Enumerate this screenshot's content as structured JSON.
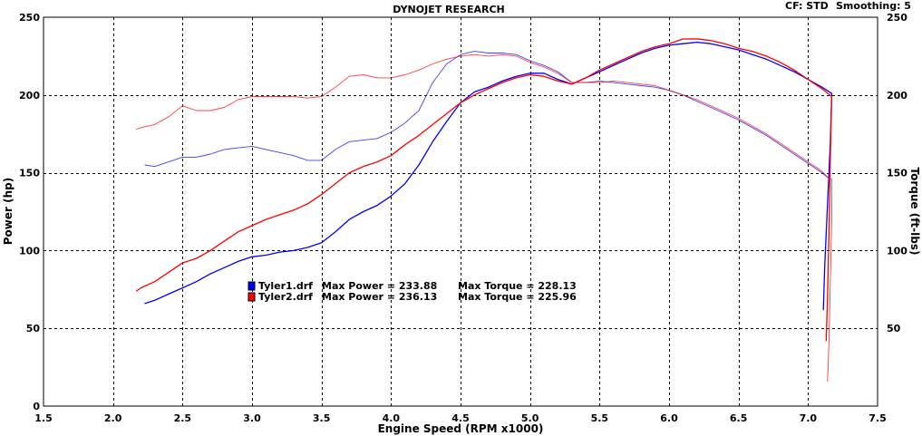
{
  "header": {
    "title": "DYNOJET RESEARCH",
    "cf_label": "CF: STD",
    "smoothing_label": "Smoothing: 5"
  },
  "chart_data": {
    "type": "line",
    "title": "DYNOJET RESEARCH",
    "xlabel": "Engine Speed (RPM x1000)",
    "ylabel_left": "Power (hp)",
    "ylabel_right": "Torque (ft-lbs)",
    "xlim": [
      1.5,
      7.5
    ],
    "ylim": [
      0,
      250
    ],
    "x_ticks": [
      "1.5",
      "2.0",
      "2.5",
      "3.0",
      "3.5",
      "4.0",
      "4.5",
      "5.0",
      "5.5",
      "6.0",
      "6.5",
      "7.0",
      "7.5"
    ],
    "y_ticks_left": [
      "0",
      "50",
      "100",
      "150",
      "200",
      "250"
    ],
    "y_ticks_right": [
      "50",
      "100",
      "150",
      "200",
      "250"
    ],
    "grid": true,
    "legend": [
      {
        "file": "Tyler1.drf",
        "power_label": "Max Power = 233.88",
        "torque_label": "Max Torque = 228.13",
        "color": "#0000ff"
      },
      {
        "file": "Tyler2.drf",
        "power_label": "Max Power = 236.13",
        "torque_label": "Max Torque = 225.96",
        "color": "#ff0000"
      }
    ],
    "series": [
      {
        "file": "Tyler1.drf",
        "measure": "power",
        "color": "#0000ff",
        "points": [
          [
            2.23,
            66
          ],
          [
            2.3,
            68
          ],
          [
            2.4,
            72
          ],
          [
            2.5,
            76
          ],
          [
            2.6,
            80
          ],
          [
            2.7,
            85
          ],
          [
            2.8,
            89
          ],
          [
            2.9,
            93
          ],
          [
            3.0,
            96
          ],
          [
            3.1,
            97
          ],
          [
            3.2,
            99
          ],
          [
            3.3,
            100
          ],
          [
            3.4,
            102
          ],
          [
            3.5,
            105
          ],
          [
            3.6,
            112
          ],
          [
            3.7,
            120
          ],
          [
            3.8,
            125
          ],
          [
            3.9,
            129
          ],
          [
            4.0,
            135
          ],
          [
            4.1,
            143
          ],
          [
            4.2,
            155
          ],
          [
            4.3,
            170
          ],
          [
            4.4,
            183
          ],
          [
            4.5,
            195
          ],
          [
            4.6,
            202
          ],
          [
            4.7,
            205
          ],
          [
            4.8,
            209
          ],
          [
            4.9,
            212
          ],
          [
            5.0,
            214
          ],
          [
            5.1,
            214
          ],
          [
            5.2,
            210
          ],
          [
            5.3,
            207
          ],
          [
            5.4,
            211
          ],
          [
            5.5,
            215
          ],
          [
            5.6,
            219
          ],
          [
            5.7,
            223
          ],
          [
            5.8,
            227
          ],
          [
            5.9,
            230
          ],
          [
            6.0,
            232
          ],
          [
            6.1,
            233
          ],
          [
            6.2,
            233.9
          ],
          [
            6.3,
            233
          ],
          [
            6.4,
            231
          ],
          [
            6.5,
            229
          ],
          [
            6.6,
            226
          ],
          [
            6.7,
            223
          ],
          [
            6.8,
            219
          ],
          [
            6.9,
            215
          ],
          [
            7.0,
            210
          ],
          [
            7.1,
            205
          ],
          [
            7.17,
            201
          ],
          [
            7.16,
            170
          ],
          [
            7.14,
            130
          ],
          [
            7.12,
            90
          ],
          [
            7.11,
            62
          ]
        ]
      },
      {
        "file": "Tyler1.drf",
        "measure": "torque",
        "color": "#0000ff",
        "points": [
          [
            2.23,
            155
          ],
          [
            2.3,
            154
          ],
          [
            2.4,
            157
          ],
          [
            2.5,
            160
          ],
          [
            2.6,
            160
          ],
          [
            2.7,
            162
          ],
          [
            2.8,
            165
          ],
          [
            2.9,
            166
          ],
          [
            3.0,
            167
          ],
          [
            3.1,
            165
          ],
          [
            3.2,
            163
          ],
          [
            3.3,
            161
          ],
          [
            3.4,
            158
          ],
          [
            3.5,
            158
          ],
          [
            3.6,
            165
          ],
          [
            3.7,
            170
          ],
          [
            3.8,
            171
          ],
          [
            3.9,
            172
          ],
          [
            4.0,
            176
          ],
          [
            4.1,
            182
          ],
          [
            4.2,
            190
          ],
          [
            4.3,
            208
          ],
          [
            4.4,
            220
          ],
          [
            4.5,
            226
          ],
          [
            4.6,
            228.1
          ],
          [
            4.7,
            227
          ],
          [
            4.8,
            227
          ],
          [
            4.9,
            226
          ],
          [
            5.0,
            222
          ],
          [
            5.1,
            219
          ],
          [
            5.2,
            215
          ],
          [
            5.3,
            208
          ],
          [
            5.4,
            208
          ],
          [
            5.5,
            209
          ],
          [
            5.6,
            208
          ],
          [
            5.7,
            207
          ],
          [
            5.8,
            206
          ],
          [
            5.9,
            205
          ],
          [
            6.0,
            203
          ],
          [
            6.1,
            200
          ],
          [
            6.2,
            196
          ],
          [
            6.3,
            192
          ],
          [
            6.4,
            188
          ],
          [
            6.5,
            184
          ],
          [
            6.6,
            179
          ],
          [
            6.7,
            174
          ],
          [
            6.8,
            168
          ],
          [
            6.9,
            162
          ],
          [
            7.0,
            156
          ],
          [
            7.1,
            150
          ],
          [
            7.14,
            147
          ],
          [
            7.16,
            148
          ]
        ]
      },
      {
        "file": "Tyler2.drf",
        "measure": "power",
        "color": "#ff0000",
        "points": [
          [
            2.17,
            74
          ],
          [
            2.2,
            76
          ],
          [
            2.3,
            80
          ],
          [
            2.4,
            86
          ],
          [
            2.5,
            92
          ],
          [
            2.6,
            95
          ],
          [
            2.7,
            100
          ],
          [
            2.8,
            106
          ],
          [
            2.9,
            112
          ],
          [
            3.0,
            116
          ],
          [
            3.1,
            120
          ],
          [
            3.2,
            123
          ],
          [
            3.3,
            126
          ],
          [
            3.4,
            130
          ],
          [
            3.5,
            136
          ],
          [
            3.6,
            143
          ],
          [
            3.7,
            150
          ],
          [
            3.8,
            154
          ],
          [
            3.9,
            157
          ],
          [
            4.0,
            161
          ],
          [
            4.1,
            168
          ],
          [
            4.2,
            174
          ],
          [
            4.3,
            181
          ],
          [
            4.4,
            188
          ],
          [
            4.5,
            195
          ],
          [
            4.6,
            200
          ],
          [
            4.7,
            204
          ],
          [
            4.8,
            208
          ],
          [
            4.9,
            211
          ],
          [
            5.0,
            213
          ],
          [
            5.1,
            212
          ],
          [
            5.2,
            209
          ],
          [
            5.3,
            207
          ],
          [
            5.4,
            211
          ],
          [
            5.5,
            216
          ],
          [
            5.6,
            220
          ],
          [
            5.7,
            224
          ],
          [
            5.8,
            228
          ],
          [
            5.9,
            231
          ],
          [
            6.0,
            233
          ],
          [
            6.1,
            236
          ],
          [
            6.2,
            236.1
          ],
          [
            6.3,
            235
          ],
          [
            6.4,
            233
          ],
          [
            6.5,
            230
          ],
          [
            6.6,
            228
          ],
          [
            6.7,
            225
          ],
          [
            6.8,
            221
          ],
          [
            6.9,
            216
          ],
          [
            7.0,
            210
          ],
          [
            7.1,
            204
          ],
          [
            7.17,
            199
          ],
          [
            7.16,
            160
          ],
          [
            7.15,
            110
          ],
          [
            7.14,
            70
          ],
          [
            7.13,
            42
          ]
        ]
      },
      {
        "file": "Tyler2.drf",
        "measure": "torque",
        "color": "#ff0000",
        "points": [
          [
            2.17,
            178
          ],
          [
            2.2,
            179
          ],
          [
            2.3,
            181
          ],
          [
            2.4,
            186
          ],
          [
            2.5,
            193
          ],
          [
            2.6,
            190
          ],
          [
            2.7,
            190
          ],
          [
            2.8,
            192
          ],
          [
            2.9,
            197
          ],
          [
            3.0,
            199
          ],
          [
            3.1,
            199
          ],
          [
            3.2,
            199
          ],
          [
            3.3,
            199
          ],
          [
            3.4,
            198
          ],
          [
            3.5,
            199
          ],
          [
            3.6,
            205
          ],
          [
            3.7,
            212
          ],
          [
            3.8,
            213
          ],
          [
            3.9,
            211
          ],
          [
            4.0,
            211
          ],
          [
            4.1,
            213
          ],
          [
            4.2,
            216
          ],
          [
            4.3,
            220
          ],
          [
            4.4,
            223
          ],
          [
            4.5,
            225
          ],
          [
            4.6,
            226
          ],
          [
            4.7,
            225
          ],
          [
            4.8,
            225.96
          ],
          [
            4.9,
            225
          ],
          [
            5.0,
            221
          ],
          [
            5.1,
            218
          ],
          [
            5.2,
            214
          ],
          [
            5.3,
            208
          ],
          [
            5.4,
            208
          ],
          [
            5.5,
            208
          ],
          [
            5.6,
            209
          ],
          [
            5.7,
            208
          ],
          [
            5.8,
            207
          ],
          [
            5.9,
            206
          ],
          [
            6.0,
            203
          ],
          [
            6.1,
            200
          ],
          [
            6.2,
            197
          ],
          [
            6.3,
            193
          ],
          [
            6.4,
            189
          ],
          [
            6.5,
            185
          ],
          [
            6.6,
            180
          ],
          [
            6.7,
            175
          ],
          [
            6.8,
            169
          ],
          [
            6.9,
            163
          ],
          [
            7.0,
            157
          ],
          [
            7.1,
            151
          ],
          [
            7.14,
            147
          ],
          [
            7.17,
            146
          ],
          [
            7.17,
            120
          ],
          [
            7.16,
            80
          ],
          [
            7.15,
            40
          ],
          [
            7.14,
            16
          ]
        ]
      }
    ]
  }
}
